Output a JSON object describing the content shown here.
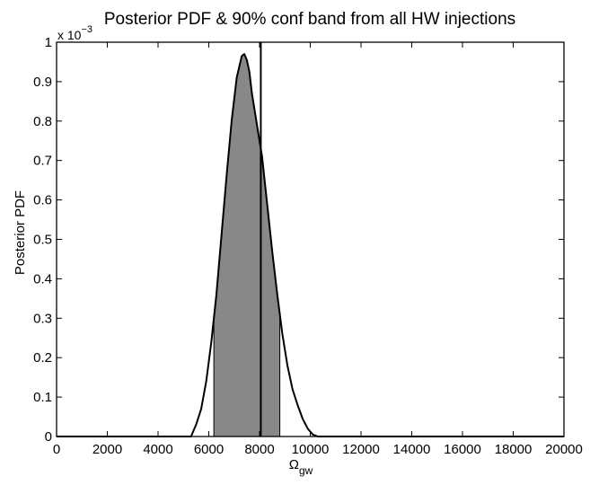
{
  "chart_data": {
    "type": "area",
    "title": "Posterior PDF & 90% conf band from all HW injections",
    "xlabel": "Ω",
    "xlabel_subscript": "gw",
    "ylabel": "Posterior PDF",
    "y_exponent_label": "x 10",
    "y_exponent_power": "−3",
    "y_scale": 0.001,
    "xlim": [
      0,
      20000
    ],
    "ylim": [
      0,
      1
    ],
    "x_ticks": [
      0,
      2000,
      4000,
      6000,
      8000,
      10000,
      12000,
      14000,
      16000,
      18000,
      20000
    ],
    "x_tick_labels": [
      "0",
      "2000",
      "4000",
      "6000",
      "8000",
      "10000",
      "12000",
      "14000",
      "16000",
      "18000",
      "20000"
    ],
    "y_ticks": [
      0,
      0.1,
      0.2,
      0.3,
      0.4,
      0.5,
      0.6,
      0.7,
      0.8,
      0.9,
      1
    ],
    "y_tick_labels": [
      "0",
      "0.1",
      "0.2",
      "0.3",
      "0.4",
      "0.5",
      "0.6",
      "0.7",
      "0.8",
      "0.9",
      "1"
    ],
    "series": [
      {
        "x": [
          0,
          5000,
          5300,
          5500,
          5700,
          5900,
          6100,
          6300,
          6500,
          6700,
          6900,
          7100,
          7300,
          7400,
          7500,
          7600,
          7700,
          7900,
          8100,
          8300,
          8500,
          8700,
          8900,
          9100,
          9300,
          9500,
          9700,
          9900,
          10100,
          10300,
          10500,
          20000
        ],
        "y": [
          0,
          0,
          0.0,
          0.03,
          0.07,
          0.14,
          0.24,
          0.36,
          0.51,
          0.66,
          0.8,
          0.91,
          0.965,
          0.97,
          0.955,
          0.925,
          0.87,
          0.79,
          0.71,
          0.59,
          0.47,
          0.36,
          0.26,
          0.18,
          0.12,
          0.08,
          0.045,
          0.02,
          0.005,
          0.0,
          0,
          0
        ]
      }
    ],
    "shaded_band": {
      "x_low": 6200,
      "x_high": 8800,
      "label": "90% conf band",
      "color": "#888888"
    },
    "vertical_line": {
      "x": 8050
    },
    "grid": false,
    "legend": "none"
  }
}
